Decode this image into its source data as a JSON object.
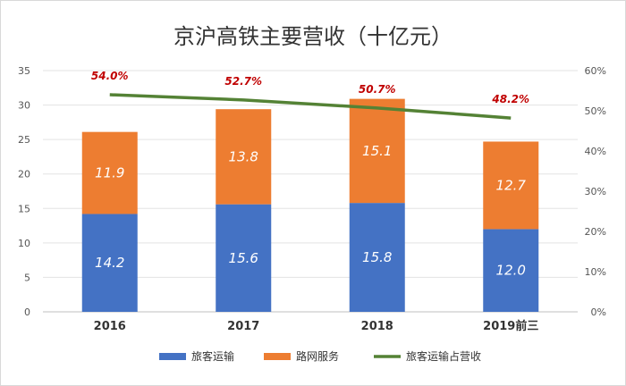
{
  "chart_data": {
    "type": "bar",
    "stacked": true,
    "title": "京沪高铁主要营收（十亿元）",
    "categories": [
      "2016",
      "2017",
      "2018",
      "2019前三"
    ],
    "series": [
      {
        "name": "旅客运输",
        "values": [
          14.2,
          15.6,
          15.8,
          12.0
        ],
        "labels": [
          "14.2",
          "15.6",
          "15.8",
          "12.0"
        ],
        "color": "#4472c4",
        "axis": "left"
      },
      {
        "name": "路网服务",
        "values": [
          11.9,
          13.8,
          15.1,
          12.7
        ],
        "labels": [
          "11.9",
          "13.8",
          "15.1",
          "12.7"
        ],
        "color": "#ed7d31",
        "axis": "left"
      },
      {
        "name": "旅客运输占营收",
        "type": "line",
        "values": [
          54.0,
          52.7,
          50.7,
          48.2
        ],
        "labels": [
          "54.0%",
          "52.7%",
          "50.7%",
          "48.2%"
        ],
        "color": "#548235",
        "axis": "right"
      }
    ],
    "ylim": [
      0,
      35
    ],
    "yticks": [
      "0",
      "5",
      "10",
      "15",
      "20",
      "25",
      "30",
      "35"
    ],
    "y2lim": [
      0,
      60
    ],
    "y2ticks": [
      "0%",
      "10%",
      "20%",
      "30%",
      "40%",
      "50%",
      "60%"
    ],
    "grid": true,
    "legend": "bottom"
  }
}
